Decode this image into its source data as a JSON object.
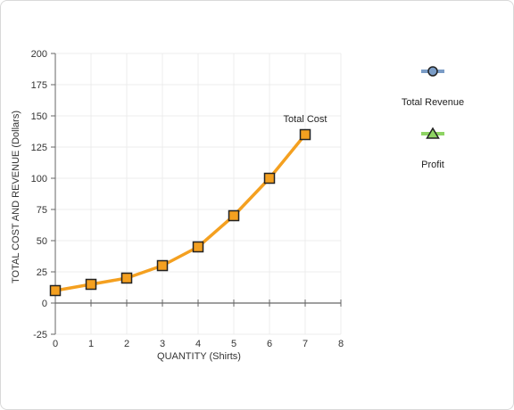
{
  "chart_data": {
    "type": "line",
    "xlabel": "QUANTITY (Shirts)",
    "ylabel": "TOTAL COST AND REVENUE (Dollars)",
    "xlim": [
      0,
      8
    ],
    "ylim": [
      -25,
      200
    ],
    "x_ticks": [
      0,
      1,
      2,
      3,
      4,
      5,
      6,
      7,
      8
    ],
    "y_ticks": [
      -25,
      0,
      25,
      50,
      75,
      100,
      125,
      150,
      175,
      200
    ],
    "grid": true,
    "series": [
      {
        "name": "Total Cost",
        "color": "#f4a020",
        "marker": "square",
        "x": [
          0,
          1,
          2,
          3,
          4,
          5,
          6,
          7
        ],
        "values": [
          10,
          15,
          20,
          30,
          45,
          70,
          100,
          135
        ]
      }
    ],
    "legend": {
      "placement": "right",
      "items": [
        {
          "name": "Total Revenue",
          "color": "#7a9cc6",
          "marker": "circle",
          "icon": "circle-marker-icon"
        },
        {
          "name": "Profit",
          "color": "#8ed463",
          "marker": "triangle",
          "icon": "triangle-marker-icon"
        }
      ]
    }
  }
}
